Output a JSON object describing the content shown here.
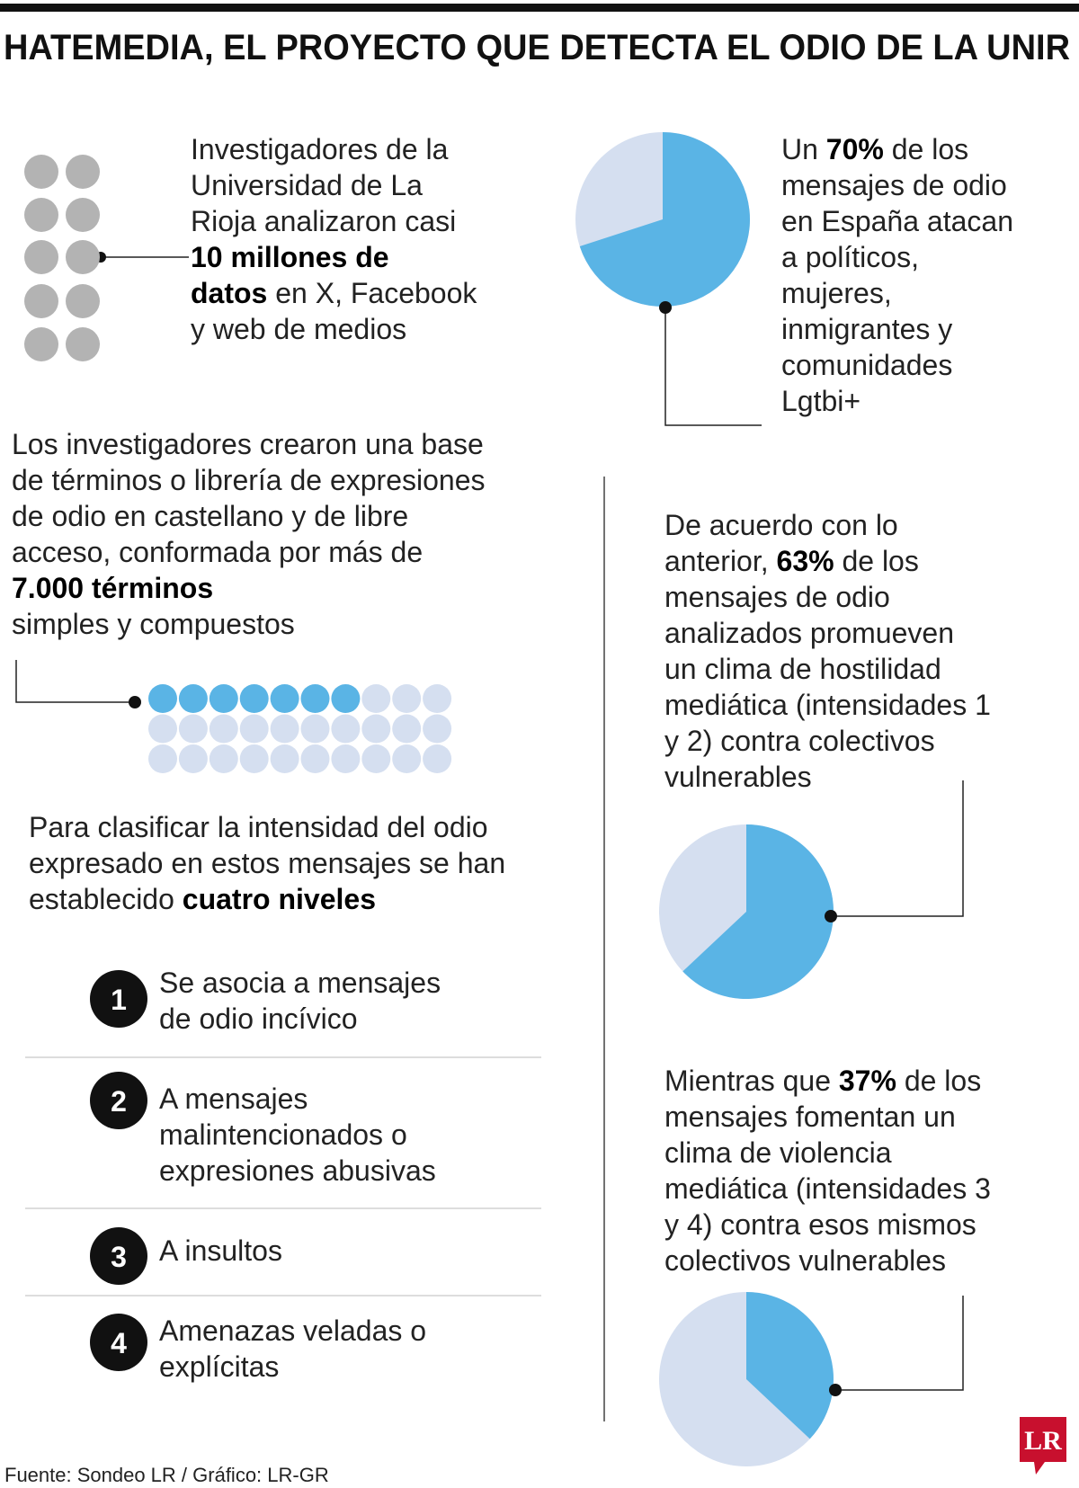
{
  "title": "HATEMEDIA, EL PROYECTO QUE DETECTA EL ODIO DE LA UNIR",
  "blocks": [
    {
      "lines": [
        [
          {
            "t": "Investigadores de la"
          }
        ],
        [
          {
            "t": "Universidad de La"
          }
        ],
        [
          {
            "t": "Rioja analizaron casi"
          }
        ],
        [
          {
            "t": "10 millones de",
            "b": true
          }
        ],
        [
          {
            "t": "datos",
            "b": true
          },
          {
            "t": " en X, Facebook"
          }
        ],
        [
          {
            "t": "y web de medios"
          }
        ]
      ]
    },
    {
      "lines": [
        [
          {
            "t": "Un "
          },
          {
            "t": "70%",
            "b": true
          },
          {
            "t": " de los"
          }
        ],
        [
          {
            "t": "mensajes de odio"
          }
        ],
        [
          {
            "t": "en España atacan"
          }
        ],
        [
          {
            "t": "a políticos,"
          }
        ],
        [
          {
            "t": "mujeres,"
          }
        ],
        [
          {
            "t": "inmigrantes y"
          }
        ],
        [
          {
            "t": "comunidades"
          }
        ],
        [
          {
            "t": "Lgtbi+"
          }
        ]
      ]
    },
    {
      "lines": [
        [
          {
            "t": "Los investigadores crearon una base"
          }
        ],
        [
          {
            "t": "de términos o librería de expresiones"
          }
        ],
        [
          {
            "t": "de odio en castellano y de libre"
          }
        ],
        [
          {
            "t": "acceso, conformada por más de"
          }
        ],
        [
          {
            "t": "7.000 términos",
            "b": true
          }
        ],
        [
          {
            "t": "simples y compuestos"
          }
        ]
      ]
    },
    {
      "lines": [
        [
          {
            "t": "Para clasificar la intensidad del odio"
          }
        ],
        [
          {
            "t": "expresado en estos mensajes se han"
          }
        ],
        [
          {
            "t": "establecido "
          },
          {
            "t": "cuatro niveles",
            "b": true
          }
        ]
      ]
    },
    {
      "lines": [
        [
          {
            "t": "De acuerdo con lo"
          }
        ],
        [
          {
            "t": "anterior, "
          },
          {
            "t": "63%",
            "b": true
          },
          {
            "t": " de los"
          }
        ],
        [
          {
            "t": "mensajes de odio"
          }
        ],
        [
          {
            "t": "analizados promueven"
          }
        ],
        [
          {
            "t": "un clima de hostilidad"
          }
        ],
        [
          {
            "t": "mediática (intensidades 1"
          }
        ],
        [
          {
            "t": "y 2) contra colectivos"
          }
        ],
        [
          {
            "t": "vulnerables"
          }
        ]
      ]
    },
    {
      "lines": [
        [
          {
            "t": "Mientras que "
          },
          {
            "t": "37%",
            "b": true
          },
          {
            "t": " de los"
          }
        ],
        [
          {
            "t": "mensajes fomentan un"
          }
        ],
        [
          {
            "t": "clima de violencia"
          }
        ],
        [
          {
            "t": "mediática (intensidades 3"
          }
        ],
        [
          {
            "t": "y 4) contra esos mismos"
          }
        ],
        [
          {
            "t": "colectivos vulnerables"
          }
        ]
      ]
    }
  ],
  "pies": [
    {
      "value": 70
    },
    {
      "value": 63
    },
    {
      "value": 37
    }
  ],
  "levels": [
    {
      "number": 1,
      "lines": [
        "Se asocia a mensajes",
        "de odio incívico"
      ]
    },
    {
      "number": 2,
      "lines": [
        "A mensajes",
        "malintencionados o",
        "expresiones abusivas"
      ]
    },
    {
      "number": 3,
      "lines": [
        "A insultos"
      ]
    },
    {
      "number": 4,
      "lines": [
        "Amenazas veladas o",
        "explícitas"
      ]
    }
  ],
  "source": "Fuente: Sondeo LR / Gráfico: LR-GR",
  "logo": "LR"
}
